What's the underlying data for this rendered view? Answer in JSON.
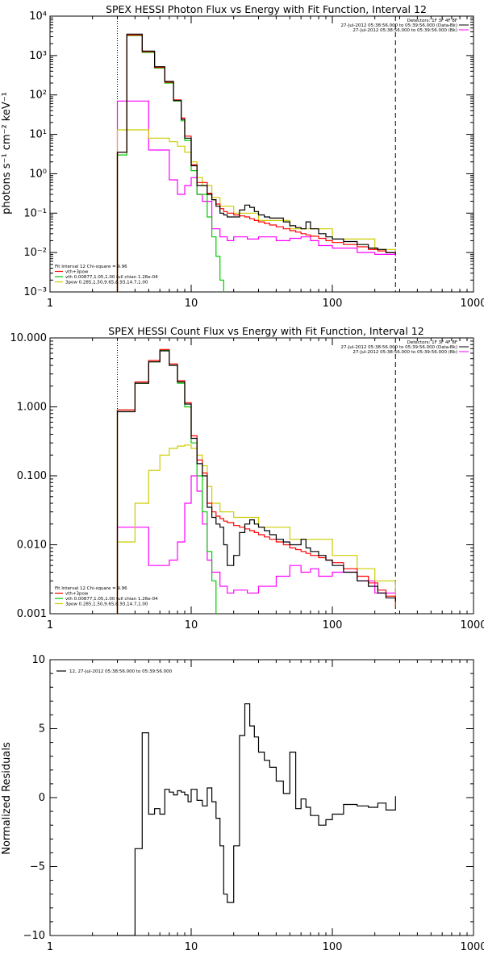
{
  "chart_data": [
    {
      "type": "line",
      "title": "SPEX HESSI Photon Flux vs Energy with Fit Function, Interval 12",
      "ylabel": "photons s⁻¹ cm⁻² keV⁻¹",
      "xlabel": "",
      "xscale": "log",
      "yscale": "log",
      "xlim": [
        1,
        1000
      ],
      "ylim": [
        0.001,
        10000
      ],
      "x_ticks": [
        "1",
        "10",
        "100",
        "1000"
      ],
      "y_ticks": [
        "10⁻³",
        "10⁻²",
        "10⁻¹",
        "10⁰",
        "10¹",
        "10²",
        "10³",
        "10⁴"
      ],
      "header_lines": [
        "Detectors: 1F 3F 4F 8F",
        "27-Jul-2012 05:38:56.000 to 05:39:56.000 (Data-Bk)",
        "27-Jul-2012 05:38:56.000 to 05:39:56.000 (Bk)"
      ],
      "header_colors": [
        "#000000",
        "#000000",
        "#ff00ff"
      ],
      "legend_lines": [
        "Fit Interval 12   Chi-square = 9.96",
        "vth+3pow",
        "vth 0.00877,1.05,1.00  full chian 1.26e-04",
        "3pow 0.285,1.50,9.65,8.93,14.7,1.00"
      ],
      "legend_colors": [
        "#000000",
        "#ff0000",
        "#00cc00",
        "#cccc00"
      ],
      "vlines": [
        3,
        280
      ],
      "series": [
        {
          "key": "data",
          "color": "#000000",
          "x": [
            3,
            3.5,
            4,
            4.5,
            5,
            5.5,
            6,
            6.5,
            7,
            7.5,
            8,
            8.5,
            9,
            9.5,
            10,
            11,
            12,
            13,
            14,
            15,
            16,
            17,
            18,
            20,
            22,
            24,
            26,
            28,
            30,
            33,
            36,
            40,
            45,
            50,
            55,
            60,
            65,
            70,
            80,
            90,
            100,
            120,
            150,
            180,
            210,
            240,
            280
          ],
          "values": [
            3.5,
            3500,
            3500,
            1300,
            1300,
            520,
            520,
            220,
            220,
            72,
            72,
            24,
            8,
            8,
            1.6,
            0.5,
            0.5,
            0.3,
            0.22,
            0.15,
            0.1,
            0.09,
            0.08,
            0.08,
            0.12,
            0.16,
            0.14,
            0.11,
            0.09,
            0.08,
            0.075,
            0.075,
            0.06,
            0.048,
            0.043,
            0.04,
            0.06,
            0.04,
            0.03,
            0.025,
            0.022,
            0.019,
            0.016,
            0.013,
            0.012,
            0.01,
            0.009
          ]
        },
        {
          "key": "fit_total",
          "color": "#ff0000",
          "x": [
            3,
            3.5,
            4,
            4.5,
            5,
            5.5,
            6,
            6.5,
            7,
            7.5,
            8,
            8.5,
            9,
            9.5,
            10,
            11,
            12,
            13,
            14,
            15,
            16,
            17,
            18,
            20,
            22,
            24,
            26,
            28,
            30,
            33,
            36,
            40,
            45,
            50,
            55,
            60,
            65,
            70,
            80,
            90,
            100,
            120,
            150,
            180,
            210,
            240,
            280
          ],
          "values": [
            3.5,
            3300,
            3300,
            1250,
            1250,
            500,
            500,
            210,
            210,
            75,
            75,
            26,
            9,
            9,
            1.7,
            0.6,
            0.6,
            0.32,
            0.22,
            0.17,
            0.13,
            0.11,
            0.1,
            0.09,
            0.085,
            0.08,
            0.072,
            0.065,
            0.06,
            0.055,
            0.05,
            0.045,
            0.04,
            0.036,
            0.033,
            0.03,
            0.028,
            0.026,
            0.023,
            0.02,
            0.018,
            0.016,
            0.014,
            0.012,
            0.011,
            0.01,
            0.009
          ]
        },
        {
          "key": "vth",
          "color": "#00cc00",
          "x": [
            3,
            3.5,
            4,
            4.5,
            5,
            5.5,
            6,
            6.5,
            7,
            7.5,
            8,
            8.5,
            9,
            9.5,
            10,
            11,
            12,
            13,
            14,
            15,
            16,
            17
          ],
          "values": [
            3,
            3200,
            3200,
            1200,
            1200,
            480,
            480,
            200,
            200,
            70,
            70,
            22,
            7,
            7,
            1.2,
            0.3,
            0.3,
            0.08,
            0.025,
            0.008,
            0.002,
            0.0006
          ]
        },
        {
          "key": "3pow",
          "color": "#cccc00",
          "x": [
            3,
            4,
            5,
            6,
            7,
            8,
            9,
            10,
            11,
            12,
            14,
            16,
            20,
            30,
            50,
            100,
            200,
            280
          ],
          "values": [
            13,
            13,
            8,
            8,
            6.5,
            5,
            3.5,
            2,
            0.8,
            0.5,
            0.25,
            0.15,
            0.1,
            0.065,
            0.04,
            0.022,
            0.012,
            0.009
          ]
        },
        {
          "key": "bk",
          "color": "#ff00ff",
          "x": [
            3,
            4,
            5,
            6,
            7,
            8,
            9,
            10,
            11,
            12,
            13,
            14,
            16,
            18,
            20,
            25,
            30,
            40,
            50,
            60,
            70,
            80,
            100,
            150,
            200,
            280
          ],
          "values": [
            70,
            70,
            4,
            4,
            0.7,
            0.3,
            0.5,
            0.8,
            0.3,
            0.2,
            0.2,
            0.04,
            0.025,
            0.02,
            0.025,
            0.022,
            0.025,
            0.02,
            0.023,
            0.025,
            0.02,
            0.015,
            0.013,
            0.01,
            0.009,
            0.008
          ]
        }
      ]
    },
    {
      "type": "line",
      "title": "SPEX HESSI Count Flux vs Energy with Fit Function, Interval 12",
      "ylabel": "",
      "xlabel": "",
      "xscale": "log",
      "yscale": "log",
      "xlim": [
        1,
        1000
      ],
      "ylim": [
        0.001,
        10
      ],
      "x_ticks": [
        "1",
        "10",
        "100",
        "1000"
      ],
      "y_ticks": [
        "0.001",
        "0.010",
        "0.100",
        "1.000",
        "10.000"
      ],
      "header_lines": [
        "Detectors: 1F 3F 4F 8F",
        "27-Jul-2012 05:38:56.000 to 05:39:56.000 (Data-Bk)",
        "27-Jul-2012 05:38:56.000 to 05:39:56.000 (Bk)"
      ],
      "header_colors": [
        "#000000",
        "#000000",
        "#ff00ff"
      ],
      "legend_lines": [
        "Fit Interval 12   Chi-square = 9.96",
        "vth+3pow",
        "vth 0.00877,1.05,1.00  full chian 1.26e-04",
        "3pow 0.285,1.50,9.65,8.93,14.7,1.00"
      ],
      "legend_colors": [
        "#000000",
        "#ff0000",
        "#00cc00",
        "#cccc00"
      ],
      "vlines": [
        3,
        280
      ],
      "series": [
        {
          "key": "data",
          "color": "#000000",
          "x": [
            3,
            3.5,
            4,
            4.5,
            5,
            5.5,
            6,
            6.5,
            7,
            7.5,
            8,
            8.5,
            9,
            9.5,
            10,
            11,
            12,
            13,
            14,
            15,
            16,
            17,
            18,
            20,
            22,
            24,
            26,
            28,
            30,
            33,
            36,
            40,
            45,
            50,
            55,
            60,
            65,
            70,
            80,
            90,
            100,
            120,
            150,
            180,
            210,
            240,
            280
          ],
          "values": [
            0.85,
            0.85,
            2.2,
            2.2,
            4.5,
            4.5,
            6.5,
            6.5,
            4,
            4,
            2.3,
            2.3,
            1.1,
            1.1,
            0.35,
            0.15,
            0.1,
            0.035,
            0.025,
            0.02,
            0.018,
            0.01,
            0.005,
            0.007,
            0.015,
            0.02,
            0.023,
            0.02,
            0.018,
            0.016,
            0.014,
            0.012,
            0.011,
            0.01,
            0.01,
            0.012,
            0.009,
            0.008,
            0.007,
            0.006,
            0.005,
            0.004,
            0.003,
            0.0025,
            0.002,
            0.0017,
            0.0015
          ]
        },
        {
          "key": "fit_total",
          "color": "#ff0000",
          "x": [
            3,
            3.5,
            4,
            4.5,
            5,
            5.5,
            6,
            6.5,
            7,
            7.5,
            8,
            8.5,
            9,
            9.5,
            10,
            11,
            12,
            13,
            14,
            15,
            16,
            17,
            18,
            20,
            22,
            24,
            26,
            28,
            30,
            33,
            36,
            40,
            45,
            50,
            55,
            60,
            65,
            70,
            80,
            90,
            100,
            120,
            150,
            180,
            210,
            240,
            280
          ],
          "values": [
            0.9,
            0.9,
            2.3,
            2.3,
            4.7,
            4.7,
            6.8,
            6.8,
            4.2,
            4.2,
            2.4,
            2.4,
            1.15,
            1.15,
            0.38,
            0.17,
            0.11,
            0.04,
            0.03,
            0.026,
            0.024,
            0.022,
            0.021,
            0.019,
            0.018,
            0.017,
            0.016,
            0.015,
            0.014,
            0.013,
            0.012,
            0.011,
            0.01,
            0.009,
            0.0085,
            0.008,
            0.0075,
            0.007,
            0.0065,
            0.006,
            0.0055,
            0.0045,
            0.0035,
            0.0028,
            0.0022,
            0.0018,
            0.0013
          ]
        },
        {
          "key": "vth",
          "color": "#00cc00",
          "x": [
            3,
            3.5,
            4,
            4.5,
            5,
            5.5,
            6,
            6.5,
            7,
            7.5,
            8,
            8.5,
            9,
            9.5,
            10,
            11,
            12,
            13,
            14,
            15
          ],
          "values": [
            0.9,
            0.9,
            2.2,
            2.2,
            4.5,
            4.5,
            6.6,
            6.6,
            4,
            4,
            2.2,
            2.2,
            1,
            1,
            0.3,
            0.1,
            0.03,
            0.008,
            0.003,
            0.0008
          ]
        },
        {
          "key": "3pow",
          "color": "#cccc00",
          "x": [
            3,
            3.5,
            4,
            4.5,
            5,
            5.5,
            6,
            6.5,
            7,
            7.5,
            8,
            8.5,
            9,
            9.5,
            10,
            11,
            12,
            13,
            14,
            16,
            20,
            30,
            50,
            100,
            150,
            200,
            280
          ],
          "values": [
            0.011,
            0.011,
            0.04,
            0.04,
            0.12,
            0.12,
            0.2,
            0.2,
            0.25,
            0.25,
            0.27,
            0.27,
            0.28,
            0.28,
            0.25,
            0.2,
            0.14,
            0.07,
            0.04,
            0.03,
            0.025,
            0.018,
            0.012,
            0.007,
            0.0045,
            0.003,
            0.0013
          ]
        },
        {
          "key": "bk",
          "color": "#ff00ff",
          "x": [
            3,
            4,
            5,
            6,
            7,
            8,
            9,
            10,
            11,
            12,
            13,
            14,
            16,
            18,
            20,
            25,
            30,
            40,
            50,
            60,
            70,
            80,
            100,
            150,
            200,
            280
          ],
          "values": [
            0.018,
            0.018,
            0.005,
            0.005,
            0.006,
            0.011,
            0.04,
            0.1,
            0.06,
            0.02,
            0.006,
            0.004,
            0.0025,
            0.002,
            0.0022,
            0.002,
            0.0025,
            0.0035,
            0.005,
            0.004,
            0.0045,
            0.0035,
            0.004,
            0.003,
            0.002,
            0.0015
          ]
        }
      ]
    },
    {
      "type": "line",
      "title": "",
      "ylabel": "Normalized Residuals",
      "xlabel": "",
      "xscale": "log",
      "yscale": "linear",
      "xlim": [
        1,
        1000
      ],
      "ylim": [
        -10,
        10
      ],
      "x_ticks": [
        "1",
        "10",
        "100",
        "1000"
      ],
      "y_ticks": [
        "−10",
        "−5",
        "0",
        "5",
        "10"
      ],
      "legend_lines": [
        "12, 27-Jul-2012 05:38:56.000 to 05:39:56.000"
      ],
      "legend_colors": [
        "#000000"
      ],
      "series": [
        {
          "key": "residuals",
          "color": "#000000",
          "x": [
            3,
            4,
            4.5,
            5,
            5.5,
            6,
            6.5,
            7,
            7.5,
            8,
            8.5,
            9,
            9.5,
            10,
            11,
            12,
            13,
            14,
            15,
            16,
            17,
            18,
            20,
            22,
            24,
            26,
            28,
            30,
            33,
            36,
            40,
            45,
            50,
            55,
            60,
            65,
            70,
            80,
            90,
            100,
            120,
            150,
            180,
            210,
            240,
            280
          ],
          "values": [
            -10,
            -3.7,
            4.7,
            -1.2,
            -0.8,
            -1.2,
            0.6,
            0.4,
            0.2,
            0.5,
            0.4,
            0.2,
            -0.3,
            0.6,
            -0.2,
            -0.6,
            0.7,
            -0.3,
            -1.5,
            -3.5,
            -7,
            -7.6,
            -3.5,
            4.5,
            6.8,
            5.2,
            4.4,
            3.3,
            2.7,
            2.2,
            1.2,
            0.3,
            3.3,
            -0.8,
            -0.1,
            -0.7,
            -1.3,
            -2,
            -1.6,
            -1.2,
            -0.5,
            -0.6,
            -0.7,
            -0.4,
            -0.9,
            0.1
          ]
        }
      ]
    }
  ]
}
